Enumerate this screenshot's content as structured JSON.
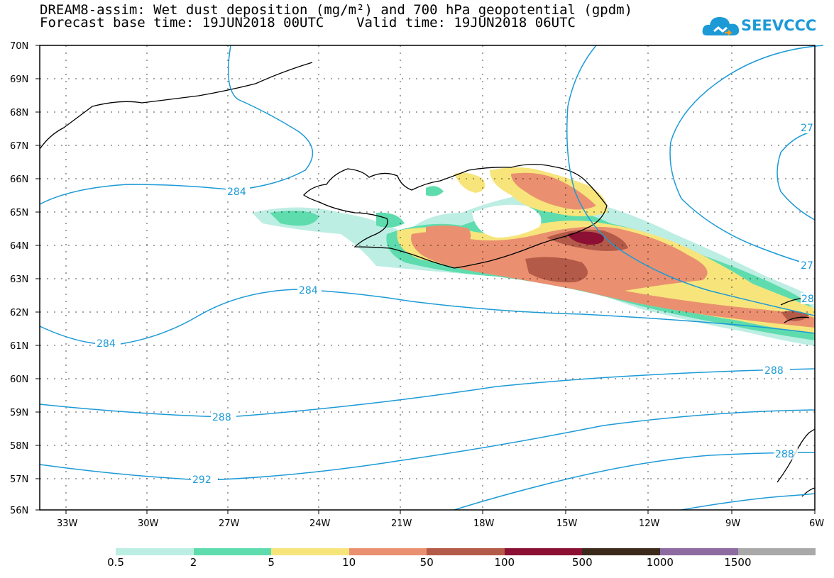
{
  "title": {
    "line1": "DREAM8-assim: Wet dust deposition (mg/m²) and 700 hPa geopotential (gpdm)",
    "line2": "Forecast base time: 19JUN2018 00UTC    Valid time: 19JUN2018 06UTC"
  },
  "logo": {
    "text": "SEEVCCC",
    "icon": "cloud-icon"
  },
  "map": {
    "lat_labels": [
      "70N",
      "69N",
      "68N",
      "67N",
      "66N",
      "65N",
      "64N",
      "63N",
      "62N",
      "61N",
      "60N",
      "59N",
      "58N",
      "57N",
      "56N"
    ],
    "lon_labels": [
      "33W",
      "30W",
      "27W",
      "24W",
      "21W",
      "18W",
      "15W",
      "12W",
      "9W",
      "6W"
    ],
    "contour_labels": [
      "284",
      "284",
      "284",
      "288",
      "288",
      "292",
      "27",
      "27",
      "28",
      "288",
      "288"
    ],
    "region": "Iceland"
  },
  "legend": {
    "colors": [
      "#bdeee3",
      "#5edcae",
      "#f7e57c",
      "#ea9070",
      "#b35a48",
      "#8b1033",
      "#3b2a1c",
      "#8d6aa0",
      "#a9a9a9"
    ],
    "labels": [
      "0.5",
      "2",
      "5",
      "10",
      "50",
      "100",
      "500",
      "1000",
      "1500"
    ]
  }
}
